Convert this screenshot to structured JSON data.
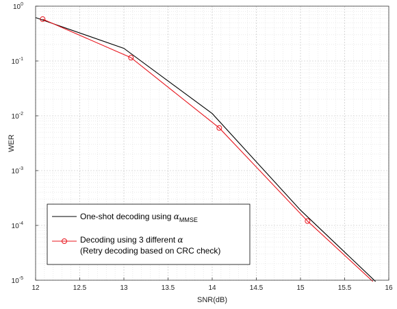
{
  "chart_data": {
    "type": "line",
    "xlabel": "SNR(dB)",
    "ylabel": "WER",
    "xlim": [
      12,
      16
    ],
    "ylim": [
      1e-05,
      1
    ],
    "yscale": "log",
    "grid": true,
    "minor_grid": true,
    "legend_position": "bottom-left",
    "x_ticks": [
      "12",
      "12.5",
      "13",
      "13.5",
      "14",
      "14.5",
      "15",
      "15.5",
      "16"
    ],
    "y_ticks": [
      {
        "base": "10",
        "exp": "0"
      },
      {
        "base": "10",
        "exp": "-1"
      },
      {
        "base": "10",
        "exp": "-2"
      },
      {
        "base": "10",
        "exp": "-3"
      },
      {
        "base": "10",
        "exp": "-4"
      },
      {
        "base": "10",
        "exp": "-5"
      }
    ],
    "series": [
      {
        "legend_main": "One-shot decoding using ",
        "legend_symbol": "α",
        "legend_sub": "MMSE",
        "color": "#000000",
        "marker": "none",
        "x": [
          12,
          13,
          14,
          15,
          15.85
        ],
        "y": [
          0.62,
          0.17,
          0.011,
          0.00019,
          9.5e-06
        ]
      },
      {
        "legend_main": "Decoding using 3 different ",
        "legend_symbol": "α",
        "legend_line2": "(Retry decoding based on CRC check)",
        "color": "#e8141c",
        "marker": "circle",
        "x": [
          12.08,
          13.08,
          14.08,
          15.08,
          15.82
        ],
        "y": [
          0.58,
          0.115,
          0.006,
          0.00012,
          9.5e-06
        ]
      }
    ]
  }
}
